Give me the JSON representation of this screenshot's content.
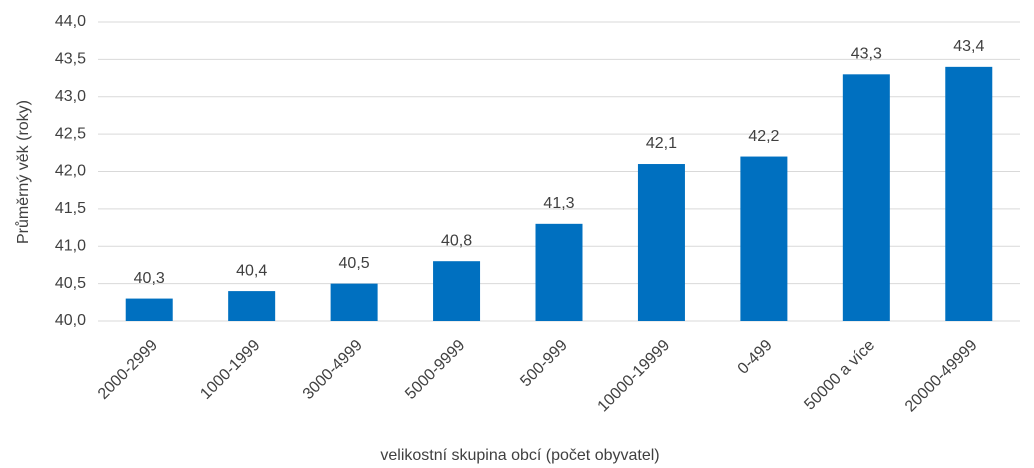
{
  "chart_data": {
    "type": "bar",
    "x_label": "velikostní skupina obcí (počet obyvatel)",
    "y_label": "Průměrný věk (roky)",
    "categories": [
      "2000-2999",
      "1000-1999",
      "3000-4999",
      "5000-9999",
      "500-999",
      "10000-19999",
      "0-499",
      "50000 a více",
      "20000-49999"
    ],
    "values": [
      40.3,
      40.4,
      40.5,
      40.8,
      41.3,
      42.1,
      42.2,
      43.3,
      43.4
    ],
    "value_labels": [
      "40,3",
      "40,4",
      "40,5",
      "40,8",
      "41,3",
      "42,1",
      "42,2",
      "43,3",
      "43,4"
    ],
    "color": "#0070c0",
    "ylim": [
      40,
      44
    ],
    "yticks": [
      {
        "value": 40,
        "label": "40,0"
      },
      {
        "value": 40.5,
        "label": "40,5"
      },
      {
        "value": 41,
        "label": "41,0"
      },
      {
        "value": 41.5,
        "label": "41,5"
      },
      {
        "value": 42,
        "label": "42,0"
      },
      {
        "value": 42.5,
        "label": "42,5"
      },
      {
        "value": 43,
        "label": "43,0"
      },
      {
        "value": 43.5,
        "label": "43,5"
      },
      {
        "value": 44,
        "label": "44,0"
      }
    ],
    "grid": true
  }
}
